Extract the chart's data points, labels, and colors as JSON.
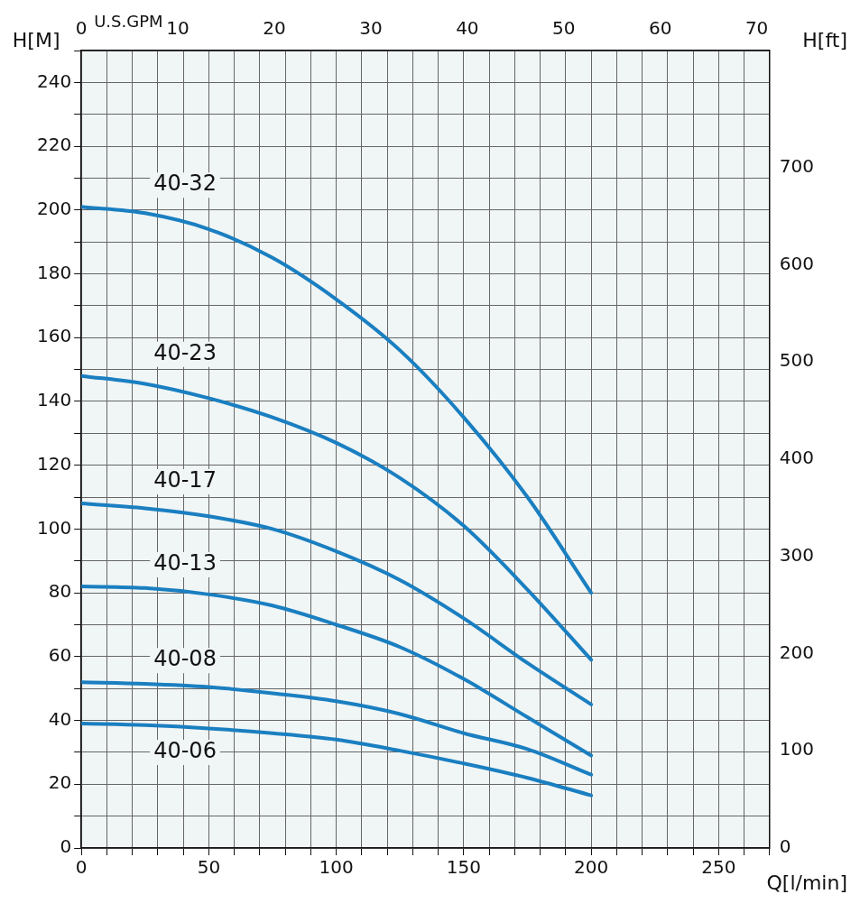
{
  "chart_data": {
    "type": "line",
    "xlabel": "Q[l/min]",
    "ylabel": "H[M]",
    "y2label": "H[ft]",
    "x2label": "U.S.GPM",
    "x": [
      0,
      25,
      50,
      75,
      100,
      125,
      150,
      175,
      200
    ],
    "series": [
      {
        "name": "40-32",
        "color": "#1a7fc1",
        "values": [
          201,
          199,
          194,
          185,
          172,
          156,
          135,
          110,
          80
        ]
      },
      {
        "name": "40-23",
        "color": "#1a7fc1",
        "values": [
          148,
          145.5,
          141,
          135,
          127,
          116,
          101,
          81,
          59
        ]
      },
      {
        "name": "40-17",
        "color": "#1a7fc1",
        "values": [
          108,
          106.5,
          104,
          100,
          93,
          84,
          72,
          58,
          45
        ]
      },
      {
        "name": "40-13",
        "color": "#1a7fc1",
        "values": [
          82,
          81.5,
          79.5,
          76,
          70,
          63,
          53,
          41,
          29
        ]
      },
      {
        "name": "40-08",
        "color": "#1a7fc1",
        "values": [
          52,
          51.5,
          50.5,
          48.5,
          46,
          42,
          36,
          31,
          23
        ]
      },
      {
        "name": "40-06",
        "color": "#1a7fc1",
        "values": [
          39,
          38.5,
          37.5,
          36,
          34,
          30.5,
          26.5,
          22,
          16.5
        ]
      }
    ],
    "xlim": [
      0,
      270
    ],
    "xticks": [
      0,
      {
        "value": 10,
        "label": null
      },
      {
        "value": 20,
        "label": null
      },
      {
        "value": 30,
        "label": null
      },
      {
        "value": 40,
        "label": null
      },
      50,
      {
        "value": 60,
        "label": null
      },
      {
        "value": 70,
        "label": null
      },
      {
        "value": 80,
        "label": null
      },
      {
        "value": 90,
        "label": null
      },
      100,
      {
        "value": 110,
        "label": null
      },
      {
        "value": 120,
        "label": null
      },
      {
        "value": 130,
        "label": null
      },
      {
        "value": 140,
        "label": null
      },
      150,
      {
        "value": 160,
        "label": null
      },
      {
        "value": 170,
        "label": null
      },
      {
        "value": 180,
        "label": null
      },
      {
        "value": 190,
        "label": null
      },
      200,
      {
        "value": 210,
        "label": null
      },
      {
        "value": 220,
        "label": null
      },
      {
        "value": 230,
        "label": null
      },
      {
        "value": 240,
        "label": null
      },
      250,
      {
        "value": 260,
        "label": null
      },
      {
        "value": 270,
        "label": null
      }
    ],
    "ylim": [
      0,
      250
    ],
    "yticks": [
      0,
      {
        "value": 10,
        "label": null
      },
      20,
      {
        "value": 30,
        "label": null
      },
      40,
      {
        "value": 50,
        "label": null
      },
      60,
      {
        "value": 70,
        "label": null
      },
      80,
      {
        "value": 90,
        "label": null
      },
      100,
      {
        "value": 110,
        "label": null
      },
      120,
      {
        "value": 130,
        "label": null
      },
      140,
      {
        "value": 150,
        "label": null
      },
      160,
      {
        "value": 170,
        "label": null
      },
      180,
      {
        "value": 190,
        "label": null
      },
      200,
      {
        "value": 210,
        "label": null
      },
      220,
      {
        "value": 230,
        "label": null
      },
      240,
      {
        "value": 250,
        "label": null
      }
    ],
    "x2lim": [
      0,
      71.33
    ],
    "x2ticks": [
      0,
      10,
      20,
      30,
      40,
      50,
      60,
      70
    ],
    "y2lim": [
      0,
      820.2
    ],
    "y2ticks": [
      0,
      100,
      200,
      300,
      400,
      500,
      600,
      700
    ],
    "grid": true,
    "legend": false,
    "marker": "none",
    "line_style": "solid"
  }
}
